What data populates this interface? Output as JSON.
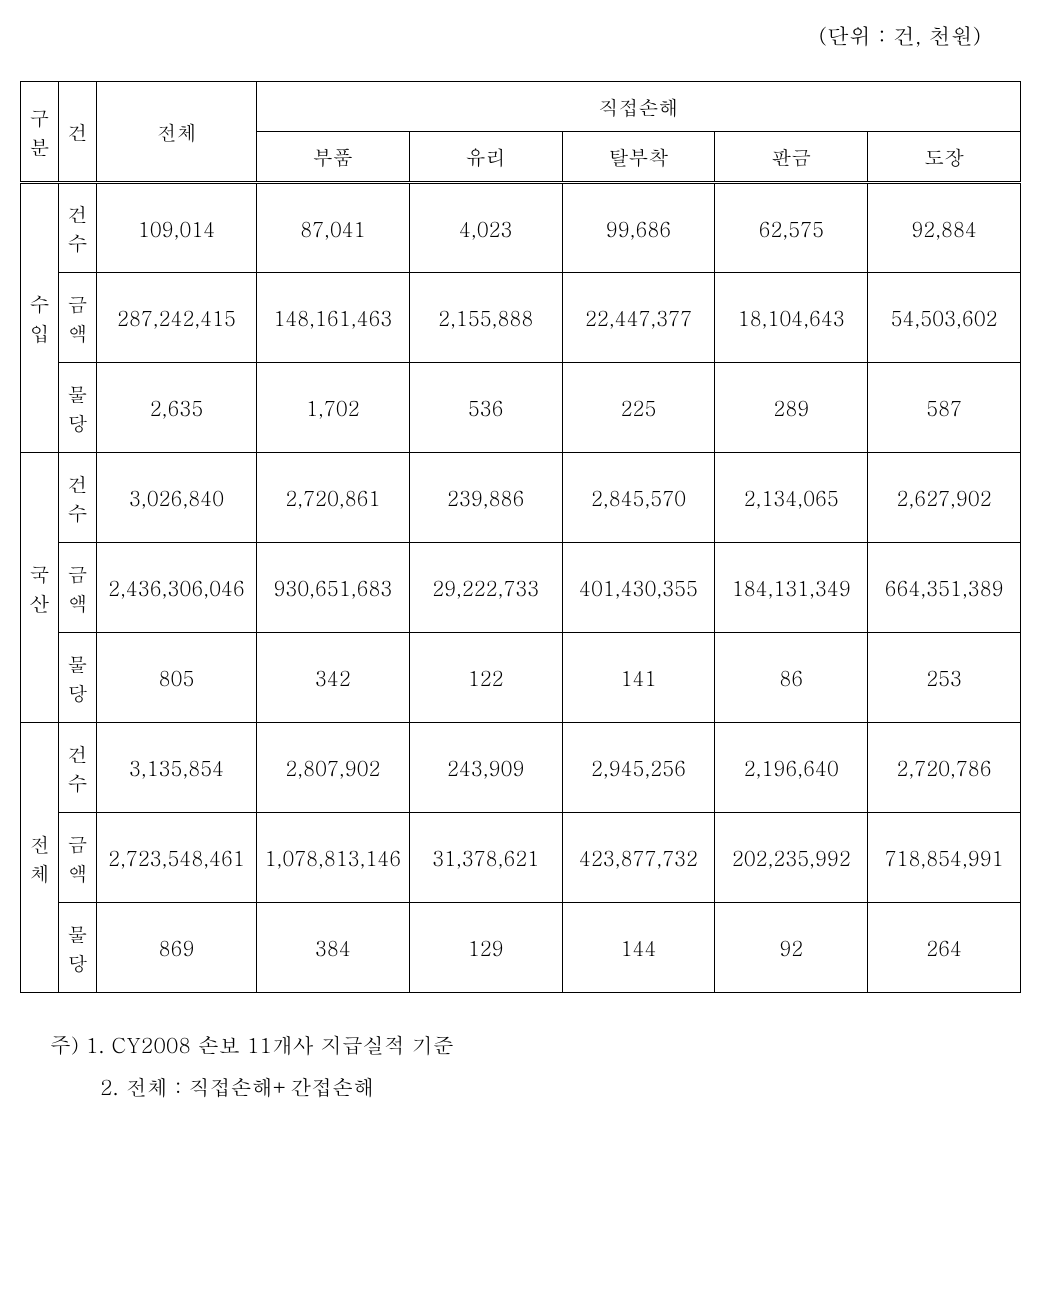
{
  "unit_label": "(단위 : 건, 천원)",
  "headers": {
    "gubun": "구분",
    "geon": "건",
    "total": "전체",
    "direct_damage": "직접손해",
    "parts": "부품",
    "glass": "유리",
    "detach": "탈부착",
    "panel": "판금",
    "paint": "도장"
  },
  "row_labels": {
    "import": "수입",
    "domestic": "국산",
    "total": "전체",
    "count": "건수",
    "amount": "금액",
    "per_unit": "물당"
  },
  "data": {
    "import": {
      "count": [
        "109,014",
        "87,041",
        "4,023",
        "99,686",
        "62,575",
        "92,884"
      ],
      "amount": [
        "287,242,415",
        "148,161,463",
        "2,155,888",
        "22,447,377",
        "18,104,643",
        "54,503,602"
      ],
      "per_unit": [
        "2,635",
        "1,702",
        "536",
        "225",
        "289",
        "587"
      ]
    },
    "domestic": {
      "count": [
        "3,026,840",
        "2,720,861",
        "239,886",
        "2,845,570",
        "2,134,065",
        "2,627,902"
      ],
      "amount": [
        "2,436,306,046",
        "930,651,683",
        "29,222,733",
        "401,430,355",
        "184,131,349",
        "664,351,389"
      ],
      "per_unit": [
        "805",
        "342",
        "122",
        "141",
        "86",
        "253"
      ]
    },
    "total": {
      "count": [
        "3,135,854",
        "2,807,902",
        "243,909",
        "2,945,256",
        "2,196,640",
        "2,720,786"
      ],
      "amount": [
        "2,723,548,461",
        "1,078,813,146",
        "31,378,621",
        "423,877,732",
        "202,235,992",
        "718,854,991"
      ],
      "per_unit": [
        "869",
        "384",
        "129",
        "144",
        "92",
        "264"
      ]
    }
  },
  "notes": {
    "note1": "주) 1. CY2008 손보 11개사 지급실적 기준",
    "note2": "2. 전체 : 직접손해+간접손해"
  },
  "styling": {
    "font_family": "Batang",
    "text_color": "#000000",
    "background_color": "#ffffff",
    "border_color": "#000000",
    "base_fontsize": 20,
    "unit_fontsize": 22,
    "note_fontsize": 21,
    "col_widths": {
      "gubun": 38,
      "geon": 38,
      "total": 160
    },
    "row_heights": {
      "header": 50,
      "data": 90
    }
  }
}
